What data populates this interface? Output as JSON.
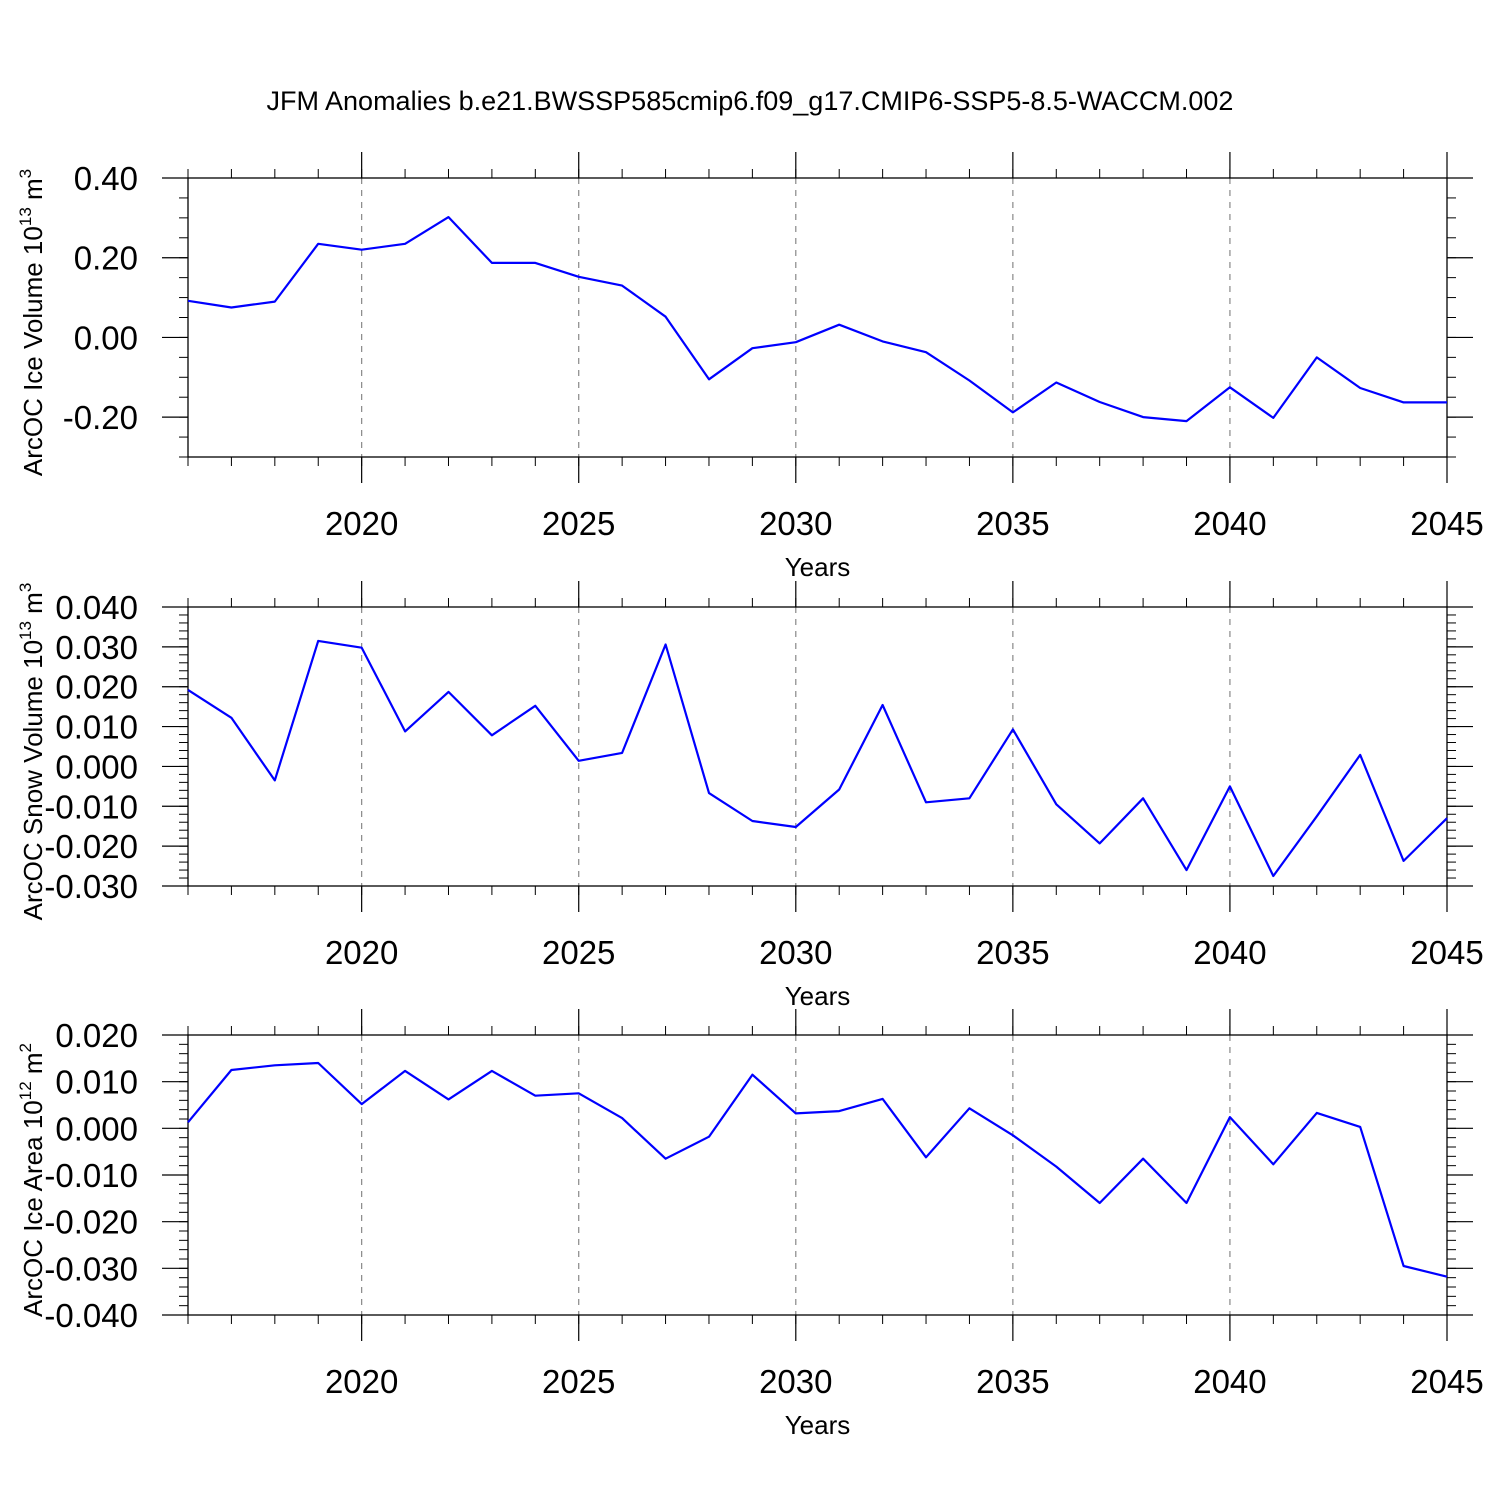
{
  "title": "JFM Anomalies b.e21.BWSSP585cmip6.f09_g17.CMIP6-SSP5-8.5-WACCM.002",
  "colors": {
    "line": "#0000ff",
    "axes": "#000000",
    "grid": "#888888"
  },
  "chart_data": [
    {
      "type": "line",
      "name": "ice-volume",
      "ylabel": {
        "main": "ArcOC Ice Volume 10",
        "exp": "13",
        "unit": " m",
        "unit_exp": "3"
      },
      "xlabel": "Years",
      "xlim": [
        2016,
        2045
      ],
      "ylim": [
        -0.3,
        0.4
      ],
      "yticks": [
        {
          "value": -0.2,
          "label": "-0.20"
        },
        {
          "value": 0.0,
          "label": "0.00"
        },
        {
          "value": 0.2,
          "label": "0.20"
        },
        {
          "value": 0.4,
          "label": "0.40"
        }
      ],
      "yminor": 0.05,
      "xticks": [
        {
          "value": 2020,
          "label": "2020"
        },
        {
          "value": 2025,
          "label": "2025"
        },
        {
          "value": 2030,
          "label": "2030"
        },
        {
          "value": 2035,
          "label": "2035"
        },
        {
          "value": 2040,
          "label": "2040"
        },
        {
          "value": 2045,
          "label": "2045"
        }
      ],
      "grid": "vertical-dashed",
      "x": [
        2016,
        2017,
        2018,
        2019,
        2020,
        2021,
        2022,
        2023,
        2024,
        2025,
        2026,
        2027,
        2028,
        2029,
        2030,
        2031,
        2032,
        2033,
        2034,
        2035,
        2036,
        2037,
        2038,
        2039,
        2040,
        2041,
        2042,
        2043,
        2044,
        2045
      ],
      "values": [
        0.092,
        0.075,
        0.09,
        0.235,
        0.22,
        0.235,
        0.302,
        0.187,
        0.187,
        0.152,
        0.13,
        0.052,
        -0.105,
        -0.027,
        -0.012,
        0.032,
        -0.01,
        -0.037,
        -0.108,
        -0.188,
        -0.113,
        -0.162,
        -0.2,
        -0.21,
        -0.125,
        -0.202,
        -0.05,
        -0.127,
        -0.163,
        -0.163
      ]
    },
    {
      "type": "line",
      "name": "snow-volume",
      "ylabel": {
        "main": "ArcOC Snow Volume 10",
        "exp": "13",
        "unit": " m",
        "unit_exp": "3"
      },
      "xlabel": "Years",
      "xlim": [
        2016,
        2045
      ],
      "ylim": [
        -0.03,
        0.04
      ],
      "yticks": [
        {
          "value": -0.03,
          "label": "-0.030"
        },
        {
          "value": -0.02,
          "label": "-0.020"
        },
        {
          "value": -0.01,
          "label": "-0.010"
        },
        {
          "value": 0.0,
          "label": "0.000"
        },
        {
          "value": 0.01,
          "label": "0.010"
        },
        {
          "value": 0.02,
          "label": "0.020"
        },
        {
          "value": 0.03,
          "label": "0.030"
        },
        {
          "value": 0.04,
          "label": "0.040"
        }
      ],
      "yminor": 0.002,
      "xticks": [
        {
          "value": 2020,
          "label": "2020"
        },
        {
          "value": 2025,
          "label": "2025"
        },
        {
          "value": 2030,
          "label": "2030"
        },
        {
          "value": 2035,
          "label": "2035"
        },
        {
          "value": 2040,
          "label": "2040"
        },
        {
          "value": 2045,
          "label": "2045"
        }
      ],
      "grid": "vertical-dashed",
      "x": [
        2016,
        2017,
        2018,
        2019,
        2020,
        2021,
        2022,
        2023,
        2024,
        2025,
        2026,
        2027,
        2028,
        2029,
        2030,
        2031,
        2032,
        2033,
        2034,
        2035,
        2036,
        2037,
        2038,
        2039,
        2040,
        2041,
        2042,
        2043,
        2044,
        2045
      ],
      "values": [
        0.0192,
        0.0122,
        -0.0035,
        0.0315,
        0.0298,
        0.0088,
        0.0187,
        0.0078,
        0.0152,
        0.0014,
        0.0034,
        0.0306,
        -0.0067,
        -0.0137,
        -0.0152,
        -0.0058,
        0.0154,
        -0.009,
        -0.008,
        0.0093,
        -0.0095,
        -0.0193,
        -0.008,
        -0.026,
        -0.005,
        -0.0275,
        -0.0125,
        0.0029,
        -0.0237,
        -0.013
      ]
    },
    {
      "type": "line",
      "name": "ice-area",
      "ylabel": {
        "main": "ArcOC Ice Area 10",
        "exp": "12",
        "unit": " m",
        "unit_exp": "2"
      },
      "xlabel": "Years",
      "xlim": [
        2016,
        2045
      ],
      "ylim": [
        -0.04,
        0.02
      ],
      "yticks": [
        {
          "value": -0.04,
          "label": "-0.040"
        },
        {
          "value": -0.03,
          "label": "-0.030"
        },
        {
          "value": -0.02,
          "label": "-0.020"
        },
        {
          "value": -0.01,
          "label": "-0.010"
        },
        {
          "value": 0.0,
          "label": "0.000"
        },
        {
          "value": 0.01,
          "label": "0.010"
        },
        {
          "value": 0.02,
          "label": "0.020"
        }
      ],
      "yminor": 0.002,
      "xticks": [
        {
          "value": 2020,
          "label": "2020"
        },
        {
          "value": 2025,
          "label": "2025"
        },
        {
          "value": 2030,
          "label": "2030"
        },
        {
          "value": 2035,
          "label": "2035"
        },
        {
          "value": 2040,
          "label": "2040"
        },
        {
          "value": 2045,
          "label": "2045"
        }
      ],
      "grid": "vertical-dashed",
      "x": [
        2016,
        2017,
        2018,
        2019,
        2020,
        2021,
        2022,
        2023,
        2024,
        2025,
        2026,
        2027,
        2028,
        2029,
        2030,
        2031,
        2032,
        2033,
        2034,
        2035,
        2036,
        2037,
        2038,
        2039,
        2040,
        2041,
        2042,
        2043,
        2044,
        2045
      ],
      "values": [
        0.0013,
        0.0125,
        0.0135,
        0.014,
        0.0052,
        0.0123,
        0.0062,
        0.0123,
        0.007,
        0.0075,
        0.0022,
        -0.0065,
        -0.0018,
        0.0115,
        0.0032,
        0.0037,
        0.0063,
        -0.0062,
        0.0043,
        -0.0015,
        -0.0082,
        -0.016,
        -0.0065,
        -0.016,
        0.0024,
        -0.0077,
        0.0033,
        0.0003,
        -0.0295,
        -0.0318
      ]
    }
  ]
}
